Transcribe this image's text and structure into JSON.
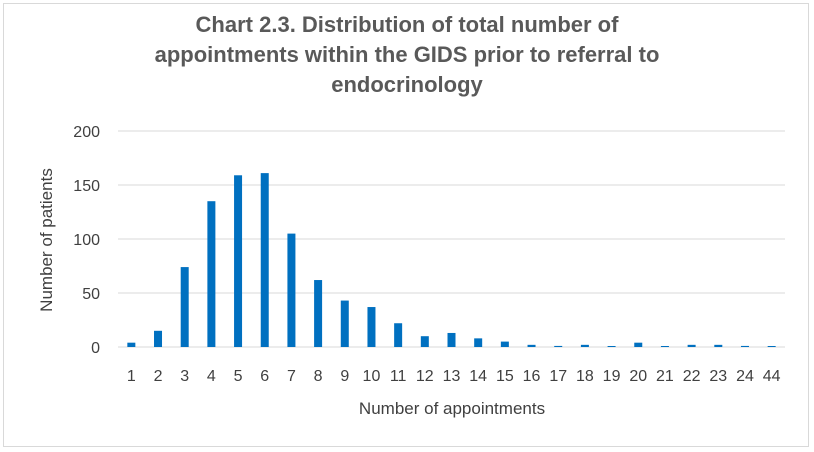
{
  "chart_data": {
    "type": "bar",
    "title": "Chart 2.3. Distribution of total number of appointments within the GIDS prior to referral to endocrinology",
    "title_lines": [
      "Chart 2.3. Distribution of total number of",
      "appointments within the GIDS prior to referral to",
      "endocrinology"
    ],
    "xlabel": "Number of appointments",
    "ylabel": "Number of patients",
    "categories": [
      "1",
      "2",
      "3",
      "4",
      "5",
      "6",
      "7",
      "8",
      "9",
      "10",
      "11",
      "12",
      "13",
      "14",
      "15",
      "16",
      "17",
      "18",
      "19",
      "20",
      "21",
      "22",
      "23",
      "24",
      "44"
    ],
    "values": [
      4,
      15,
      74,
      135,
      159,
      161,
      105,
      62,
      43,
      37,
      22,
      10,
      13,
      8,
      5,
      2,
      1,
      2,
      0,
      4,
      0,
      2,
      2,
      1,
      0
    ],
    "ylim": [
      0,
      200
    ],
    "yticks": [
      "0",
      "50",
      "100",
      "150",
      "200"
    ],
    "grid": true,
    "legend": "none",
    "bar_color": "#0070c0",
    "grid_color": "#d9d9d9"
  }
}
